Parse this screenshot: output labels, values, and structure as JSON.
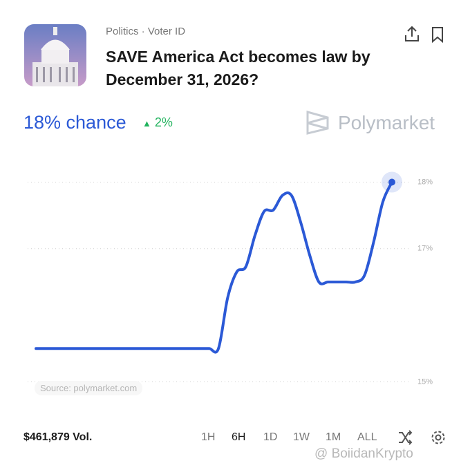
{
  "header": {
    "category": "Politics · Voter ID",
    "title": "SAVE America Act becomes law by December 31, 2026?",
    "chance": "18% chance",
    "change": "2%",
    "brand": "Polymarket"
  },
  "chart_data": {
    "type": "line",
    "values": [
      15.5,
      15.5,
      15.5,
      15.5,
      15.5,
      15.5,
      15.5,
      15.5,
      15.5,
      15.5,
      15.5,
      15.5,
      15.5,
      15.5,
      15.5,
      15.5,
      15.5,
      15.5,
      15.5,
      15.5,
      15.5,
      16.26,
      16.65,
      16.73,
      17.2,
      17.56,
      17.58,
      17.8,
      17.8,
      17.4,
      16.9,
      16.5,
      16.5,
      16.5,
      16.5,
      16.5,
      16.6,
      17.1,
      17.7,
      18
    ],
    "color": "#2b59d6",
    "ylim": [
      14.9,
      18.4
    ],
    "yticks": [
      {
        "value": 15,
        "label": "15%"
      },
      {
        "value": 17,
        "label": "17%"
      },
      {
        "value": 18,
        "label": "18%"
      }
    ],
    "grid": true,
    "source": "Source: polymarket.com"
  },
  "footer": {
    "volume": "$461,879 Vol.",
    "ranges": [
      "1H",
      "6H",
      "1D",
      "1W",
      "1M",
      "ALL"
    ],
    "watermark": "@ BoiidanKrypto"
  }
}
